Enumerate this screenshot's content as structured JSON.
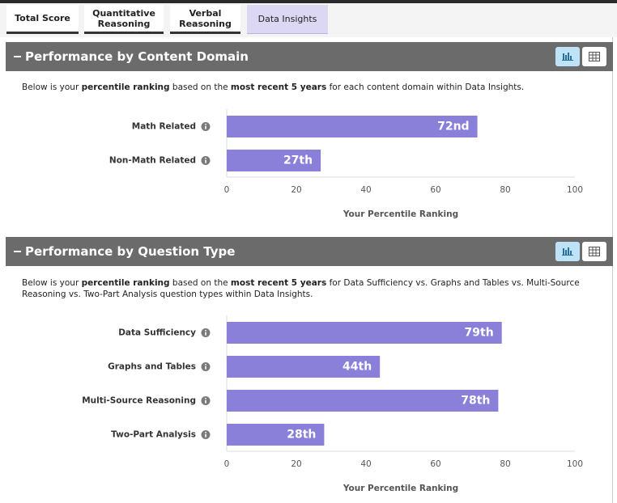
{
  "tabs": [
    {
      "label": "Total Score"
    },
    {
      "label": "Quantitative Reasoning"
    },
    {
      "label": "Verbal Reasoning"
    },
    {
      "label": "Data Insights",
      "active": true
    }
  ],
  "sections": [
    {
      "title": "Performance by Content Domain",
      "description": [
        {
          "text": "Below is your "
        },
        {
          "text": "percentile ranking",
          "bold": true
        },
        {
          "text": " based on the "
        },
        {
          "text": "most recent 5 years",
          "bold": true
        },
        {
          "text": " for each content domain within Data Insights."
        }
      ]
    },
    {
      "title": "Performance by Question Type",
      "description": [
        {
          "text": "Below is your "
        },
        {
          "text": "percentile ranking",
          "bold": true
        },
        {
          "text": " based on the "
        },
        {
          "text": "most recent 5 years",
          "bold": true
        },
        {
          "text": " for Data Sufficiency vs. Graphs and Tables vs. Multi-Source Reasoning vs. Two-Part Analysis question types within Data Insights."
        }
      ]
    }
  ],
  "chart_data": [
    {
      "type": "bar",
      "orientation": "horizontal",
      "categories": [
        "Math Related",
        "Non-Math Related"
      ],
      "values": [
        72,
        27
      ],
      "value_labels": [
        "72nd",
        "27th"
      ],
      "xlim": [
        0,
        100
      ],
      "xticks": [
        0,
        20,
        40,
        60,
        80,
        100
      ],
      "xlabel": "Your Percentile Ranking",
      "color": "#8b80d9"
    },
    {
      "type": "bar",
      "orientation": "horizontal",
      "categories": [
        "Data Sufficiency",
        "Graphs and Tables",
        "Multi-Source Reasoning",
        "Two-Part Analysis"
      ],
      "values": [
        79,
        44,
        78,
        28
      ],
      "value_labels": [
        "79th",
        "44th",
        "78th",
        "28th"
      ],
      "xlim": [
        0,
        100
      ],
      "xticks": [
        0,
        20,
        40,
        60,
        80,
        100
      ],
      "xlabel": "Your Percentile Ranking",
      "color": "#8b80d9"
    }
  ]
}
